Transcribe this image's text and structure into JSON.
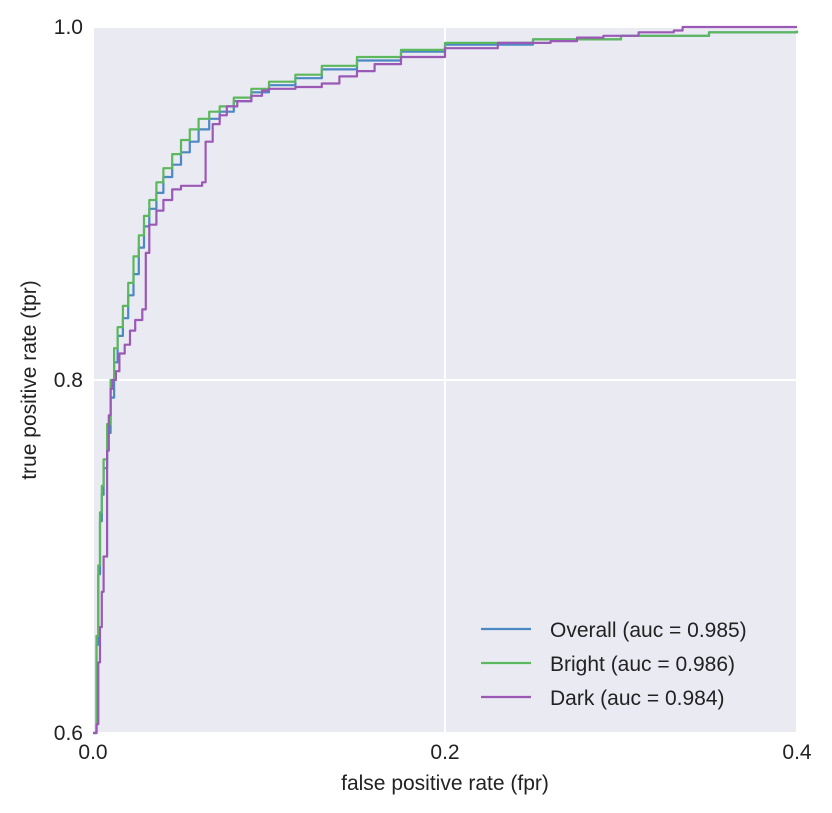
{
  "chart_data": {
    "type": "line",
    "title": "",
    "xlabel": "false positive rate (fpr)",
    "ylabel": "true positive rate (tpr)",
    "xlim": [
      0.0,
      0.4
    ],
    "ylim": [
      0.6,
      1.0
    ],
    "xticks": [
      0.0,
      0.2,
      0.4
    ],
    "xtick_labels": [
      "0.0",
      "0.2",
      "0.4"
    ],
    "yticks": [
      0.6,
      0.8,
      1.0
    ],
    "ytick_labels": [
      "0.6",
      "0.8",
      "1.0"
    ],
    "grid": true,
    "legend_position": "lower-right",
    "series": [
      {
        "name": "Overall (auc = 0.985)",
        "color": "#4c88c4",
        "x": [
          0.0,
          0.002,
          0.003,
          0.004,
          0.005,
          0.006,
          0.008,
          0.01,
          0.012,
          0.014,
          0.017,
          0.02,
          0.023,
          0.026,
          0.029,
          0.032,
          0.036,
          0.04,
          0.045,
          0.05,
          0.055,
          0.06,
          0.066,
          0.072,
          0.08,
          0.09,
          0.1,
          0.115,
          0.13,
          0.15,
          0.175,
          0.2,
          0.25,
          0.3,
          0.35,
          0.4
        ],
        "y": [
          0.6,
          0.65,
          0.69,
          0.72,
          0.735,
          0.75,
          0.77,
          0.79,
          0.81,
          0.825,
          0.835,
          0.848,
          0.86,
          0.875,
          0.887,
          0.897,
          0.906,
          0.915,
          0.922,
          0.929,
          0.935,
          0.942,
          0.948,
          0.952,
          0.958,
          0.963,
          0.967,
          0.971,
          0.976,
          0.981,
          0.986,
          0.99,
          0.993,
          0.995,
          0.997,
          0.998
        ]
      },
      {
        "name": "Bright (auc = 0.986)",
        "color": "#5cb85c",
        "x": [
          0.0,
          0.002,
          0.003,
          0.004,
          0.005,
          0.006,
          0.008,
          0.01,
          0.012,
          0.014,
          0.017,
          0.02,
          0.023,
          0.026,
          0.029,
          0.032,
          0.036,
          0.04,
          0.045,
          0.05,
          0.055,
          0.06,
          0.066,
          0.072,
          0.08,
          0.09,
          0.1,
          0.115,
          0.13,
          0.15,
          0.175,
          0.2,
          0.25,
          0.3,
          0.35,
          0.4
        ],
        "y": [
          0.6,
          0.655,
          0.695,
          0.725,
          0.74,
          0.755,
          0.775,
          0.8,
          0.818,
          0.83,
          0.842,
          0.855,
          0.87,
          0.882,
          0.893,
          0.902,
          0.912,
          0.92,
          0.928,
          0.936,
          0.942,
          0.948,
          0.952,
          0.955,
          0.96,
          0.965,
          0.969,
          0.973,
          0.978,
          0.983,
          0.987,
          0.991,
          0.993,
          0.995,
          0.997,
          0.998
        ]
      },
      {
        "name": "Dark (auc = 0.984)",
        "color": "#9b59b6",
        "x": [
          0.0,
          0.002,
          0.003,
          0.004,
          0.005,
          0.006,
          0.008,
          0.009,
          0.01,
          0.011,
          0.013,
          0.015,
          0.018,
          0.021,
          0.024,
          0.028,
          0.03,
          0.032,
          0.036,
          0.04,
          0.045,
          0.05,
          0.062,
          0.064,
          0.068,
          0.072,
          0.076,
          0.082,
          0.09,
          0.096,
          0.1,
          0.115,
          0.13,
          0.14,
          0.15,
          0.16,
          0.175,
          0.2,
          0.23,
          0.26,
          0.275,
          0.29,
          0.31,
          0.33,
          0.335,
          0.36,
          0.4
        ],
        "y": [
          0.6,
          0.605,
          0.64,
          0.66,
          0.68,
          0.7,
          0.76,
          0.78,
          0.795,
          0.8,
          0.805,
          0.815,
          0.82,
          0.828,
          0.834,
          0.84,
          0.872,
          0.888,
          0.896,
          0.902,
          0.908,
          0.91,
          0.912,
          0.935,
          0.945,
          0.95,
          0.955,
          0.958,
          0.961,
          0.964,
          0.965,
          0.966,
          0.968,
          0.972,
          0.975,
          0.979,
          0.983,
          0.988,
          0.991,
          0.992,
          0.994,
          0.995,
          0.997,
          0.998,
          1.0,
          1.0,
          1.0
        ]
      }
    ],
    "style": {
      "plot_background": "#eaeaf2",
      "grid_color": "#ffffff",
      "text_color": "#222222"
    }
  }
}
